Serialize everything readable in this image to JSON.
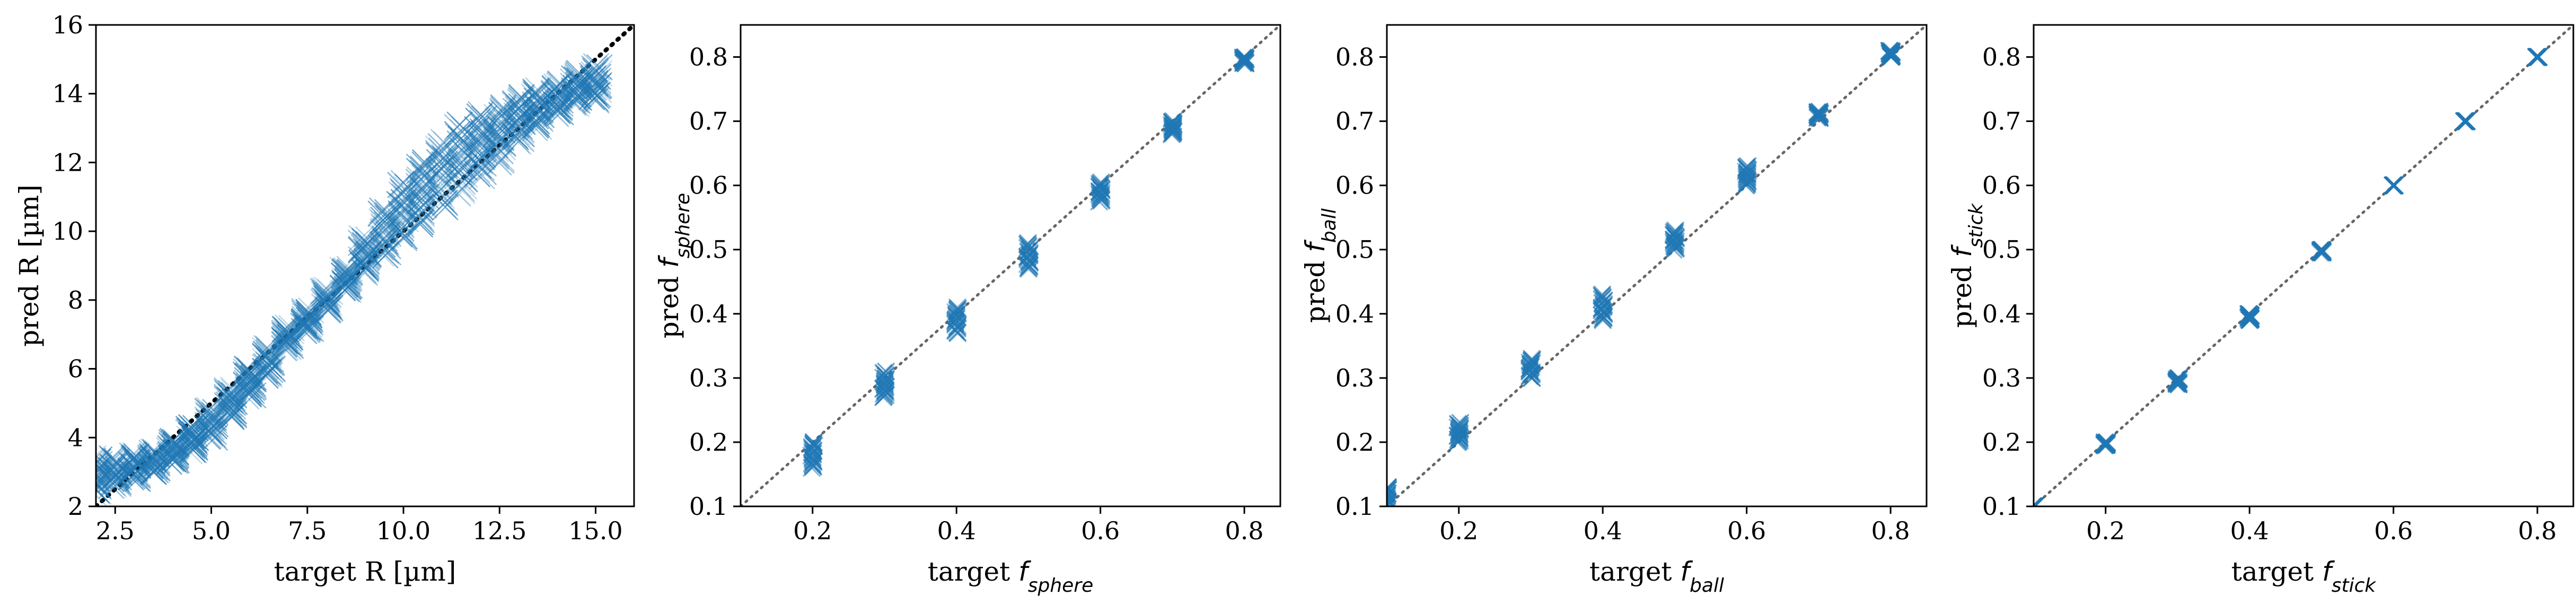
{
  "chart_data": [
    {
      "type": "scatter",
      "xlabel": "target R [µm]",
      "ylabel": "pred R [µm]",
      "xlim": [
        2,
        16
      ],
      "ylim": [
        2,
        16
      ],
      "xticks": [
        "2.5",
        "5.0",
        "7.5",
        "10.0",
        "12.5",
        "15.0"
      ],
      "yticks": [
        "2",
        "4",
        "6",
        "8",
        "10",
        "12",
        "14",
        "16"
      ],
      "marker": "x",
      "color": "#1f77b4",
      "reference_line": {
        "style": "dotted",
        "color": "#000000"
      },
      "points": [
        {
          "x": 2.0,
          "y_min": 2.4,
          "y_max": 3.4
        },
        {
          "x": 2.5,
          "y_min": 2.6,
          "y_max": 3.4
        },
        {
          "x": 3.0,
          "y_min": 2.8,
          "y_max": 3.5
        },
        {
          "x": 3.5,
          "y_min": 3.0,
          "y_max": 3.6
        },
        {
          "x": 4.0,
          "y_min": 3.3,
          "y_max": 3.9
        },
        {
          "x": 4.5,
          "y_min": 3.6,
          "y_max": 4.3
        },
        {
          "x": 5.0,
          "y_min": 4.0,
          "y_max": 4.8
        },
        {
          "x": 5.5,
          "y_min": 4.6,
          "y_max": 5.4
        },
        {
          "x": 6.0,
          "y_min": 5.2,
          "y_max": 6.0
        },
        {
          "x": 6.5,
          "y_min": 5.8,
          "y_max": 6.6
        },
        {
          "x": 7.0,
          "y_min": 6.6,
          "y_max": 7.2
        },
        {
          "x": 7.5,
          "y_min": 7.1,
          "y_max": 7.7
        },
        {
          "x": 8.0,
          "y_min": 7.7,
          "y_max": 8.3
        },
        {
          "x": 8.5,
          "y_min": 8.3,
          "y_max": 8.9
        },
        {
          "x": 9.0,
          "y_min": 8.8,
          "y_max": 9.8
        },
        {
          "x": 9.5,
          "y_min": 9.3,
          "y_max": 10.6
        },
        {
          "x": 10.0,
          "y_min": 9.8,
          "y_max": 11.4
        },
        {
          "x": 10.5,
          "y_min": 10.2,
          "y_max": 12.0
        },
        {
          "x": 11.0,
          "y_min": 10.7,
          "y_max": 12.6
        },
        {
          "x": 11.5,
          "y_min": 11.1,
          "y_max": 13.1
        },
        {
          "x": 12.0,
          "y_min": 11.6,
          "y_max": 13.4
        },
        {
          "x": 12.5,
          "y_min": 12.0,
          "y_max": 13.6
        },
        {
          "x": 13.0,
          "y_min": 12.6,
          "y_max": 13.9
        },
        {
          "x": 13.5,
          "y_min": 13.0,
          "y_max": 14.1
        },
        {
          "x": 14.0,
          "y_min": 13.4,
          "y_max": 14.3
        },
        {
          "x": 14.5,
          "y_min": 13.7,
          "y_max": 14.6
        },
        {
          "x": 15.0,
          "y_min": 13.8,
          "y_max": 14.8
        }
      ]
    },
    {
      "type": "scatter",
      "xlabel": {
        "prefix": "target ",
        "symbol": "f",
        "subscript": "sphere"
      },
      "ylabel": {
        "prefix": "pred ",
        "symbol": "f",
        "subscript": "sphere"
      },
      "xlim": [
        0.1,
        0.85
      ],
      "ylim": [
        0.1,
        0.85
      ],
      "xticks": [
        "0.2",
        "0.4",
        "0.6",
        "0.8"
      ],
      "yticks": [
        "0.1",
        "0.2",
        "0.3",
        "0.4",
        "0.5",
        "0.6",
        "0.7",
        "0.8"
      ],
      "marker": "x",
      "color": "#1f77b4",
      "reference_line": {
        "style": "dotted",
        "color": "#666666"
      },
      "points": [
        {
          "x": 0.2,
          "y_min": 0.16,
          "y_max": 0.2
        },
        {
          "x": 0.3,
          "y_min": 0.27,
          "y_max": 0.31
        },
        {
          "x": 0.4,
          "y_min": 0.37,
          "y_max": 0.41
        },
        {
          "x": 0.5,
          "y_min": 0.47,
          "y_max": 0.51
        },
        {
          "x": 0.6,
          "y_min": 0.575,
          "y_max": 0.605
        },
        {
          "x": 0.7,
          "y_min": 0.68,
          "y_max": 0.7
        },
        {
          "x": 0.8,
          "y_min": 0.79,
          "y_max": 0.8
        }
      ]
    },
    {
      "type": "scatter",
      "xlabel": {
        "prefix": "target ",
        "symbol": "f",
        "subscript": "ball"
      },
      "ylabel": {
        "prefix": "pred ",
        "symbol": "f",
        "subscript": "ball"
      },
      "xlim": [
        0.1,
        0.85
      ],
      "ylim": [
        0.1,
        0.85
      ],
      "xticks": [
        "0.2",
        "0.4",
        "0.6",
        "0.8"
      ],
      "yticks": [
        "0.1",
        "0.2",
        "0.3",
        "0.4",
        "0.5",
        "0.6",
        "0.7",
        "0.8"
      ],
      "marker": "x",
      "color": "#1f77b4",
      "reference_line": {
        "style": "dotted",
        "color": "#666666"
      },
      "points": [
        {
          "x": 0.1,
          "y_min": 0.1,
          "y_max": 0.13
        },
        {
          "x": 0.2,
          "y_min": 0.2,
          "y_max": 0.23
        },
        {
          "x": 0.3,
          "y_min": 0.3,
          "y_max": 0.33
        },
        {
          "x": 0.4,
          "y_min": 0.39,
          "y_max": 0.43
        },
        {
          "x": 0.5,
          "y_min": 0.5,
          "y_max": 0.53
        },
        {
          "x": 0.6,
          "y_min": 0.6,
          "y_max": 0.63
        },
        {
          "x": 0.7,
          "y_min": 0.705,
          "y_max": 0.715
        },
        {
          "x": 0.8,
          "y_min": 0.8,
          "y_max": 0.81
        }
      ]
    },
    {
      "type": "scatter",
      "xlabel": {
        "prefix": "target ",
        "symbol": "f",
        "subscript": "stick"
      },
      "ylabel": {
        "prefix": "pred ",
        "symbol": "f",
        "subscript": "stick"
      },
      "xlim": [
        0.1,
        0.85
      ],
      "ylim": [
        0.1,
        0.85
      ],
      "xticks": [
        "0.2",
        "0.4",
        "0.6",
        "0.8"
      ],
      "yticks": [
        "0.1",
        "0.2",
        "0.3",
        "0.4",
        "0.5",
        "0.6",
        "0.7",
        "0.8"
      ],
      "marker": "x",
      "color": "#1f77b4",
      "reference_line": {
        "style": "dotted",
        "color": "#666666"
      },
      "points": [
        {
          "x": 0.1,
          "y_min": 0.1,
          "y_max": 0.1
        },
        {
          "x": 0.2,
          "y_min": 0.195,
          "y_max": 0.2
        },
        {
          "x": 0.3,
          "y_min": 0.29,
          "y_max": 0.3
        },
        {
          "x": 0.4,
          "y_min": 0.39,
          "y_max": 0.4
        },
        {
          "x": 0.5,
          "y_min": 0.495,
          "y_max": 0.5
        },
        {
          "x": 0.6,
          "y_min": 0.6,
          "y_max": 0.6
        },
        {
          "x": 0.7,
          "y_min": 0.7,
          "y_max": 0.7
        },
        {
          "x": 0.8,
          "y_min": 0.8,
          "y_max": 0.8
        }
      ]
    }
  ]
}
